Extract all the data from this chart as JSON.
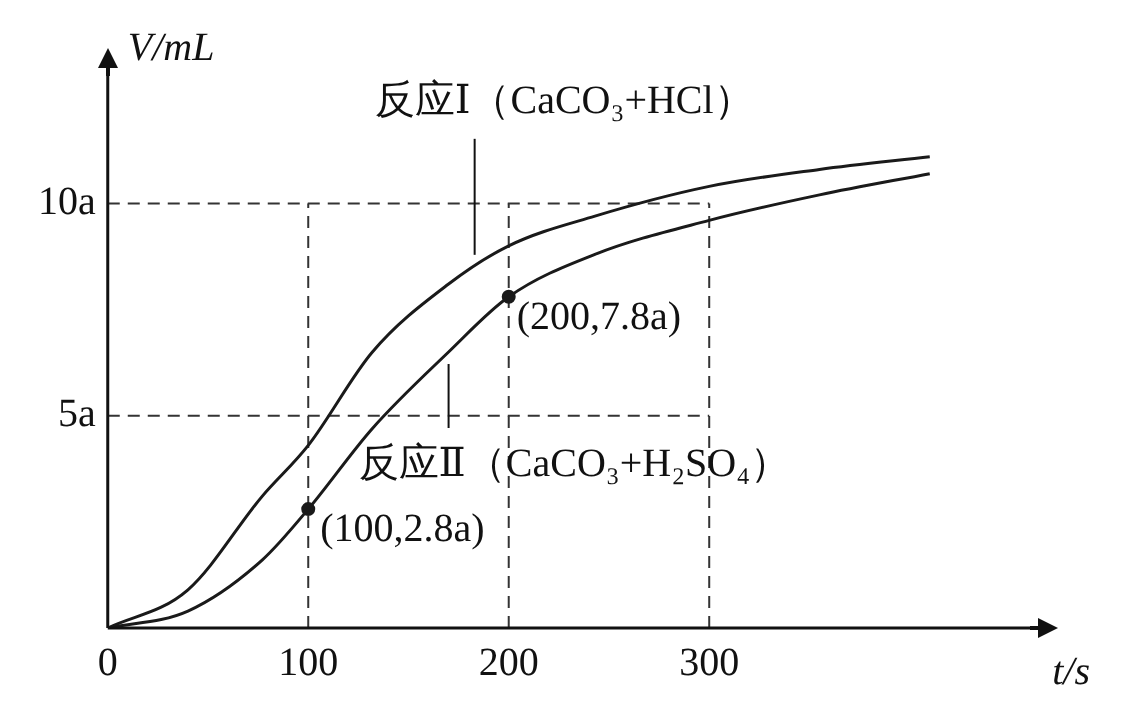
{
  "chart_data": {
    "type": "line",
    "xlabel": "t/s",
    "ylabel": "V/mL",
    "xlim": [
      0,
      460
    ],
    "ylim": [
      0,
      13
    ],
    "xticks": [
      0,
      100,
      200,
      300
    ],
    "yticks": [
      {
        "value": 5,
        "label": "5a"
      },
      {
        "value": 10,
        "label": "10a"
      }
    ],
    "ref_lines": [
      {
        "axis": "x",
        "value": 100,
        "line_style": "dashed"
      },
      {
        "axis": "x",
        "value": 200,
        "line_style": "dashed"
      },
      {
        "axis": "x",
        "value": 300,
        "line_style": "dashed"
      },
      {
        "axis": "y",
        "value": 5,
        "line_style": "dashed"
      },
      {
        "axis": "y",
        "value": 10,
        "line_style": "dashed"
      }
    ],
    "legend": false,
    "marker": "none",
    "line_style": "solid",
    "series": [
      {
        "color": "#1a1a1a",
        "x": [
          0,
          40,
          77,
          100,
          132,
          170,
          200,
          243,
          300,
          355,
          410
        ],
        "values": [
          0,
          0.9,
          3.1,
          4.3,
          6.5,
          8.1,
          9.0,
          9.7,
          10.4,
          10.8,
          11.1
        ]
      },
      {
        "color": "#1a1a1a",
        "x": [
          0,
          40,
          77,
          100,
          132,
          170,
          200,
          243,
          300,
          355,
          410
        ],
        "values": [
          0,
          0.4,
          1.6,
          2.8,
          4.7,
          6.5,
          7.8,
          8.8,
          9.6,
          10.2,
          10.7
        ]
      },
      {
        "type": "scatter",
        "marker": "circle",
        "color": "#1a1a1a",
        "x": [
          100,
          200
        ],
        "values": [
          2.8,
          7.8
        ]
      }
    ],
    "annotations": [
      {
        "text": "反应Ⅰ（CaCO₃+HCl）",
        "x": 183,
        "y": 8.6
      },
      {
        "text": "反应Ⅱ（CaCO₃+H₂SO₄）",
        "x": 170,
        "y": 6.5
      },
      {
        "text": "(200,7.8a)",
        "x": 200,
        "y": 7.8
      },
      {
        "text": "(100,2.8a)",
        "x": 100,
        "y": 2.8
      }
    ]
  }
}
